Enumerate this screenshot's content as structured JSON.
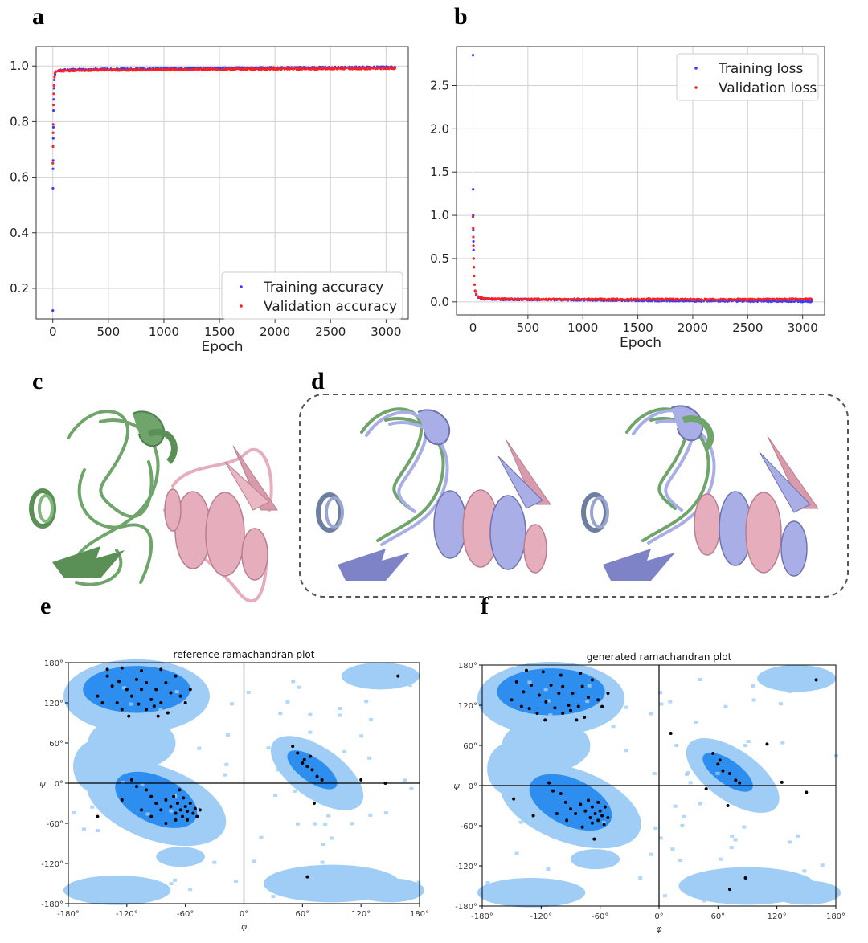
{
  "panels": {
    "a": "a",
    "b": "b",
    "c": "c",
    "d": "d",
    "e": "e",
    "f": "f"
  },
  "chart_data": [
    {
      "id": "a",
      "type": "scatter",
      "title": "",
      "xlabel": "Epoch",
      "ylabel": "",
      "xlim": [
        -150,
        3200
      ],
      "ylim": [
        0.09,
        1.07
      ],
      "xticks": [
        0,
        500,
        1000,
        1500,
        2000,
        2500,
        3000
      ],
      "yticks": [
        0.2,
        0.4,
        0.6,
        0.8,
        1.0
      ],
      "ytick_labels": [
        "0.2",
        "0.4",
        "0.6",
        "0.8",
        "1.0"
      ],
      "grid": true,
      "legend_position": "bottom-right",
      "series": [
        {
          "name": "Training accuracy",
          "color": "#3b3bff",
          "x": [
            0,
            1,
            2,
            3,
            4,
            5,
            6,
            8,
            10,
            14,
            20,
            30,
            50,
            100,
            200,
            400,
            800,
            1200,
            1600,
            2000,
            2400,
            2800,
            3080
          ],
          "y": [
            0.12,
            0.56,
            0.63,
            0.66,
            0.74,
            0.78,
            0.84,
            0.88,
            0.92,
            0.95,
            0.97,
            0.98,
            0.983,
            0.985,
            0.987,
            0.988,
            0.989,
            0.99,
            0.992,
            0.993,
            0.994,
            0.995,
            0.996
          ]
        },
        {
          "name": "Validation accuracy",
          "color": "#ff2020",
          "x": [
            0,
            2,
            3,
            4,
            6,
            8,
            10,
            15,
            20,
            30,
            50,
            100,
            200,
            400,
            800,
            1200,
            1600,
            2000,
            2400,
            2800,
            3080
          ],
          "y": [
            0.65,
            0.71,
            0.76,
            0.79,
            0.86,
            0.9,
            0.93,
            0.96,
            0.975,
            0.98,
            0.982,
            0.983,
            0.984,
            0.985,
            0.986,
            0.987,
            0.988,
            0.989,
            0.99,
            0.991,
            0.992
          ]
        }
      ]
    },
    {
      "id": "b",
      "type": "scatter",
      "title": "",
      "xlabel": "Epoch",
      "ylabel": "",
      "xlim": [
        -150,
        3200
      ],
      "ylim": [
        -0.15,
        2.95
      ],
      "xticks": [
        0,
        500,
        1000,
        1500,
        2000,
        2500,
        3000
      ],
      "yticks": [
        0.0,
        0.5,
        1.0,
        1.5,
        2.0,
        2.5
      ],
      "ytick_labels": [
        "0.0",
        "0.5",
        "1.0",
        "1.5",
        "2.0",
        "2.5"
      ],
      "grid": true,
      "legend_position": "top-right",
      "series": [
        {
          "name": "Training loss",
          "color": "#3b3bff",
          "x": [
            0,
            1,
            2,
            3,
            4,
            5,
            6,
            8,
            10,
            14,
            20,
            30,
            50,
            100,
            200,
            400,
            800,
            1200,
            1600,
            2000,
            2400,
            2800,
            3080
          ],
          "y": [
            2.85,
            1.3,
            1.0,
            0.83,
            0.7,
            0.6,
            0.5,
            0.4,
            0.3,
            0.2,
            0.12,
            0.08,
            0.05,
            0.035,
            0.03,
            0.028,
            0.025,
            0.02,
            0.015,
            0.012,
            0.01,
            0.008,
            0.006
          ]
        },
        {
          "name": "Validation loss",
          "color": "#ff2020",
          "x": [
            0,
            2,
            3,
            4,
            6,
            8,
            10,
            15,
            20,
            30,
            50,
            100,
            200,
            400,
            800,
            1200,
            1600,
            2000,
            2400,
            2800,
            3080
          ],
          "y": [
            0.98,
            0.85,
            0.75,
            0.65,
            0.5,
            0.4,
            0.3,
            0.2,
            0.13,
            0.09,
            0.06,
            0.04,
            0.035,
            0.03,
            0.03,
            0.03,
            0.03,
            0.028,
            0.028,
            0.03,
            0.03
          ]
        }
      ]
    },
    {
      "id": "e",
      "type": "scatter",
      "title": "reference ramachandran plot",
      "xlabel": "φ",
      "ylabel": "ψ",
      "xlim": [
        -180,
        180
      ],
      "ylim": [
        -180,
        180
      ],
      "xticks": [
        -180,
        -120,
        -60,
        0,
        60,
        120,
        180
      ],
      "xtick_labels": [
        "-180°",
        "-120°",
        "-60°",
        "0°",
        "60°",
        "120°",
        "180°"
      ],
      "yticks": [
        -180,
        -120,
        -60,
        0,
        60,
        120,
        180
      ],
      "ytick_labels": [
        "-180°",
        "-120°",
        "-60°",
        "0°",
        "60°",
        "120°",
        "180°"
      ],
      "points": [
        [
          -140,
          160
        ],
        [
          -135,
          145
        ],
        [
          -128,
          152
        ],
        [
          -120,
          140
        ],
        [
          -115,
          130
        ],
        [
          -110,
          155
        ],
        [
          -105,
          140
        ],
        [
          -100,
          150
        ],
        [
          -95,
          125
        ],
        [
          -90,
          140
        ],
        [
          -85,
          120
        ],
        [
          -80,
          150
        ],
        [
          -75,
          135
        ],
        [
          -70,
          160
        ],
        [
          -65,
          130
        ],
        [
          -150,
          130
        ],
        [
          -145,
          120
        ],
        [
          -130,
          120
        ],
        [
          -125,
          110
        ],
        [
          -118,
          100
        ],
        [
          -108,
          118
        ],
        [
          -100,
          110
        ],
        [
          -92,
          115
        ],
        [
          -88,
          100
        ],
        [
          -78,
          105
        ],
        [
          -60,
          120
        ],
        [
          -55,
          140
        ],
        [
          -140,
          170
        ],
        [
          -125,
          172
        ],
        [
          -105,
          168
        ],
        [
          -85,
          170
        ],
        [
          -95,
          -20
        ],
        [
          -90,
          -30
        ],
        [
          -85,
          -40
        ],
        [
          -80,
          -25
        ],
        [
          -75,
          -35
        ],
        [
          -70,
          -45
        ],
        [
          -68,
          -30
        ],
        [
          -65,
          -40
        ],
        [
          -63,
          -50
        ],
        [
          -60,
          -35
        ],
        [
          -58,
          -42
        ],
        [
          -55,
          -30
        ],
        [
          -52,
          -45
        ],
        [
          -50,
          -38
        ],
        [
          -48,
          -50
        ],
        [
          -72,
          -20
        ],
        [
          -62,
          -22
        ],
        [
          -58,
          -55
        ],
        [
          -100,
          -10
        ],
        [
          -110,
          -5
        ],
        [
          -115,
          5
        ],
        [
          -105,
          -40
        ],
        [
          -95,
          -50
        ],
        [
          -80,
          -60
        ],
        [
          -70,
          -55
        ],
        [
          -45,
          -40
        ],
        [
          -66,
          -10
        ],
        [
          -150,
          -50
        ],
        [
          -125,
          -25
        ],
        [
          55,
          45
        ],
        [
          60,
          30
        ],
        [
          65,
          25
        ],
        [
          70,
          20
        ],
        [
          62,
          35
        ],
        [
          75,
          10
        ],
        [
          80,
          5
        ],
        [
          68,
          40
        ],
        [
          72,
          -30
        ],
        [
          50,
          55
        ],
        [
          120,
          5
        ],
        [
          145,
          0
        ],
        [
          158,
          160
        ],
        [
          65,
          -140
        ]
      ]
    },
    {
      "id": "f",
      "type": "scatter",
      "title": "generated ramachandran plot",
      "xlabel": "φ",
      "ylabel": "ψ",
      "xlim": [
        -180,
        180
      ],
      "ylim": [
        -180,
        180
      ],
      "xticks": [
        -180,
        -120,
        -60,
        0,
        60,
        120,
        180
      ],
      "xtick_labels": [
        "-180°",
        "-120°",
        "-60°",
        "0°",
        "60°",
        "120°",
        "180°"
      ],
      "yticks": [
        -180,
        -120,
        -60,
        0,
        60,
        120,
        180
      ],
      "ytick_labels": [
        "-180°",
        "-120°",
        "-60°",
        "0°",
        "60°",
        "120°",
        "180°"
      ],
      "points": [
        [
          -145,
          155
        ],
        [
          -138,
          140
        ],
        [
          -130,
          150
        ],
        [
          -122,
          135
        ],
        [
          -115,
          125
        ],
        [
          -110,
          150
        ],
        [
          -102,
          138
        ],
        [
          -98,
          148
        ],
        [
          -92,
          120
        ],
        [
          -88,
          138
        ],
        [
          -82,
          118
        ],
        [
          -78,
          148
        ],
        [
          -72,
          132
        ],
        [
          -68,
          158
        ],
        [
          -62,
          128
        ],
        [
          -150,
          128
        ],
        [
          -140,
          118
        ],
        [
          -132,
          115
        ],
        [
          -124,
          108
        ],
        [
          -116,
          98
        ],
        [
          -106,
          116
        ],
        [
          -98,
          108
        ],
        [
          -90,
          112
        ],
        [
          -84,
          98
        ],
        [
          -76,
          102
        ],
        [
          -58,
          118
        ],
        [
          -52,
          138
        ],
        [
          -135,
          172
        ],
        [
          -118,
          170
        ],
        [
          -100,
          165
        ],
        [
          -80,
          168
        ],
        [
          -95,
          -25
        ],
        [
          -90,
          -35
        ],
        [
          -85,
          -42
        ],
        [
          -80,
          -28
        ],
        [
          -75,
          -38
        ],
        [
          -70,
          -48
        ],
        [
          -68,
          -32
        ],
        [
          -65,
          -42
        ],
        [
          -62,
          -52
        ],
        [
          -60,
          -38
        ],
        [
          -58,
          -45
        ],
        [
          -55,
          -32
        ],
        [
          -52,
          -48
        ],
        [
          -72,
          -22
        ],
        [
          -62,
          -25
        ],
        [
          -56,
          -58
        ],
        [
          -100,
          -12
        ],
        [
          -108,
          -8
        ],
        [
          -112,
          4
        ],
        [
          -104,
          -42
        ],
        [
          -94,
          -52
        ],
        [
          -78,
          -62
        ],
        [
          -68,
          -56
        ],
        [
          -66,
          -80
        ],
        [
          -148,
          -20
        ],
        [
          -128,
          -45
        ],
        [
          55,
          48
        ],
        [
          60,
          32
        ],
        [
          65,
          22
        ],
        [
          72,
          18
        ],
        [
          62,
          38
        ],
        [
          78,
          8
        ],
        [
          82,
          4
        ],
        [
          70,
          -30
        ],
        [
          48,
          -5
        ],
        [
          12,
          78
        ],
        [
          110,
          62
        ],
        [
          125,
          5
        ],
        [
          150,
          -10
        ],
        [
          160,
          158
        ],
        [
          72,
          -155
        ],
        [
          88,
          -138
        ]
      ]
    }
  ]
}
